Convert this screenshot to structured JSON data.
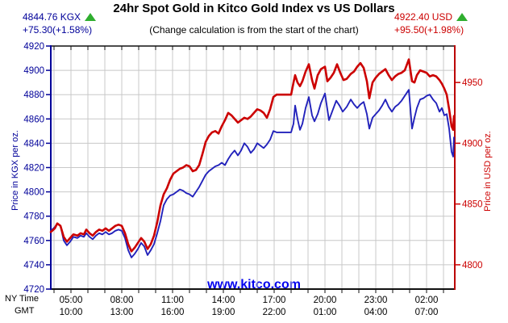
{
  "header": {
    "title": "24hr Spot Gold in Kitco Gold Index vs US Dollars",
    "subtitle": "(Change calculation is from the start of the chart)",
    "kgx_quote": {
      "price": "4844.76 KGX",
      "change": "+75.30(+1.58%)",
      "direction": "up",
      "color": "#000099"
    },
    "usd_quote": {
      "price": "4922.40 USD",
      "change": "+95.50(+1.98%)",
      "direction": "up",
      "color": "#cc0000"
    }
  },
  "watermark": "www.kitco.com",
  "colors": {
    "navy": "#000099",
    "red": "#cc0000",
    "grid": "#c8c8c8",
    "frame": "#111111",
    "arrow_green": "#2fae2f",
    "watermark_blue": "#0000ee"
  },
  "chart_data": {
    "type": "line",
    "title": "24hr Spot Gold in Kitco Gold Index vs US Dollars",
    "grid": true,
    "left_axis": {
      "label": "Price in KGX per oz.",
      "range": [
        4720,
        4920
      ],
      "ticks": [
        4920,
        4900,
        4880,
        4860,
        4840,
        4820,
        4800,
        4780,
        4760,
        4740,
        4720
      ],
      "color": "#000099"
    },
    "right_axis": {
      "label": "Price in USD per oz.",
      "range": [
        4780,
        4980
      ],
      "ticks": [
        4950,
        4900,
        4850,
        4800
      ],
      "color": "#cc0000"
    },
    "x_axis": {
      "row_labels": [
        "NY Time",
        "GMT"
      ],
      "ticks": [
        {
          "ny": "05:00",
          "gmt": "10:00"
        },
        {
          "ny": "08:00",
          "gmt": "13:00"
        },
        {
          "ny": "11:00",
          "gmt": "16:00"
        },
        {
          "ny": "14:00",
          "gmt": "19:00"
        },
        {
          "ny": "17:00",
          "gmt": "22:00"
        },
        {
          "ny": "20:00",
          "gmt": "01:00"
        },
        {
          "ny": "23:00",
          "gmt": "04:00"
        },
        {
          "ny": "02:00",
          "gmt": "07:00"
        }
      ]
    },
    "series": [
      {
        "name": "KGX",
        "axis": "left",
        "color": "#2222bb",
        "width": 1.9,
        "points": [
          [
            63,
            4768
          ],
          [
            68,
            4771
          ],
          [
            71,
            4774
          ],
          [
            75,
            4772
          ],
          [
            79,
            4760
          ],
          [
            83,
            4756
          ],
          [
            87,
            4759
          ],
          [
            91,
            4763
          ],
          [
            96,
            4762
          ],
          [
            100,
            4764
          ],
          [
            104,
            4763
          ],
          [
            107,
            4766
          ],
          [
            111,
            4763
          ],
          [
            115,
            4761
          ],
          [
            119,
            4764
          ],
          [
            123,
            4766
          ],
          [
            127,
            4765
          ],
          [
            131,
            4767
          ],
          [
            135,
            4765
          ],
          [
            139,
            4766
          ],
          [
            143,
            4768
          ],
          [
            147,
            4769
          ],
          [
            151,
            4768
          ],
          [
            155,
            4762
          ],
          [
            159,
            4752
          ],
          [
            163,
            4746
          ],
          [
            167,
            4749
          ],
          [
            171,
            4753
          ],
          [
            175,
            4758
          ],
          [
            179,
            4755
          ],
          [
            183,
            4748
          ],
          [
            187,
            4752
          ],
          [
            191,
            4757
          ],
          [
            195,
            4766
          ],
          [
            199,
            4776
          ],
          [
            203,
            4789
          ],
          [
            207,
            4794
          ],
          [
            211,
            4797
          ],
          [
            215,
            4798
          ],
          [
            219,
            4800
          ],
          [
            223,
            4802
          ],
          [
            227,
            4801
          ],
          [
            231,
            4799
          ],
          [
            235,
            4798
          ],
          [
            239,
            4796
          ],
          [
            243,
            4800
          ],
          [
            247,
            4804
          ],
          [
            251,
            4809
          ],
          [
            255,
            4814
          ],
          [
            259,
            4817
          ],
          [
            263,
            4819
          ],
          [
            267,
            4821
          ],
          [
            271,
            4822
          ],
          [
            275,
            4824
          ],
          [
            279,
            4822
          ],
          [
            283,
            4827
          ],
          [
            287,
            4831
          ],
          [
            291,
            4834
          ],
          [
            295,
            4830
          ],
          [
            299,
            4834
          ],
          [
            303,
            4840
          ],
          [
            307,
            4837
          ],
          [
            311,
            4832
          ],
          [
            315,
            4835
          ],
          [
            319,
            4840
          ],
          [
            323,
            4838
          ],
          [
            327,
            4836
          ],
          [
            331,
            4839
          ],
          [
            335,
            4843
          ],
          [
            339,
            4850
          ],
          [
            343,
            4849
          ],
          [
            355,
            4849
          ],
          [
            361,
            4849
          ],
          [
            364,
            4856
          ],
          [
            366,
            4871
          ],
          [
            369,
            4860
          ],
          [
            372,
            4851
          ],
          [
            375,
            4856
          ],
          [
            379,
            4869
          ],
          [
            383,
            4878
          ],
          [
            387,
            4863
          ],
          [
            390,
            4858
          ],
          [
            394,
            4864
          ],
          [
            398,
            4873
          ],
          [
            403,
            4881
          ],
          [
            408,
            4859
          ],
          [
            413,
            4868
          ],
          [
            417,
            4875
          ],
          [
            421,
            4871
          ],
          [
            425,
            4866
          ],
          [
            430,
            4870
          ],
          [
            435,
            4876
          ],
          [
            439,
            4872
          ],
          [
            443,
            4869
          ],
          [
            447,
            4872
          ],
          [
            451,
            4874
          ],
          [
            455,
            4864
          ],
          [
            458,
            4852
          ],
          [
            462,
            4861
          ],
          [
            466,
            4864
          ],
          [
            470,
            4867
          ],
          [
            474,
            4871
          ],
          [
            478,
            4876
          ],
          [
            482,
            4870
          ],
          [
            486,
            4866
          ],
          [
            490,
            4870
          ],
          [
            494,
            4872
          ],
          [
            498,
            4875
          ],
          [
            502,
            4879
          ],
          [
            507,
            4884
          ],
          [
            511,
            4852
          ],
          [
            514,
            4861
          ],
          [
            517,
            4869
          ],
          [
            521,
            4876
          ],
          [
            525,
            4877
          ],
          [
            529,
            4879
          ],
          [
            533,
            4880
          ],
          [
            537,
            4876
          ],
          [
            541,
            4873
          ],
          [
            545,
            4866
          ],
          [
            548,
            4869
          ],
          [
            551,
            4863
          ],
          [
            554,
            4864
          ],
          [
            557,
            4852
          ],
          [
            560,
            4833
          ],
          [
            562,
            4829
          ],
          [
            563,
            4844.8
          ]
        ]
      },
      {
        "name": "USD",
        "axis": "right",
        "color": "#cc0000",
        "width": 2.6,
        "points": [
          [
            63,
            4827
          ],
          [
            68,
            4830
          ],
          [
            71,
            4834
          ],
          [
            75,
            4832
          ],
          [
            79,
            4823
          ],
          [
            83,
            4819
          ],
          [
            87,
            4822
          ],
          [
            91,
            4825
          ],
          [
            96,
            4824
          ],
          [
            100,
            4826
          ],
          [
            104,
            4825
          ],
          [
            107,
            4829
          ],
          [
            111,
            4826
          ],
          [
            115,
            4824
          ],
          [
            119,
            4827
          ],
          [
            123,
            4829
          ],
          [
            127,
            4828
          ],
          [
            131,
            4830
          ],
          [
            135,
            4828
          ],
          [
            139,
            4830
          ],
          [
            143,
            4832
          ],
          [
            147,
            4833
          ],
          [
            151,
            4832
          ],
          [
            155,
            4826
          ],
          [
            159,
            4817
          ],
          [
            163,
            4811
          ],
          [
            167,
            4814
          ],
          [
            171,
            4818
          ],
          [
            175,
            4822
          ],
          [
            179,
            4819
          ],
          [
            183,
            4813
          ],
          [
            187,
            4817
          ],
          [
            191,
            4824
          ],
          [
            195,
            4835
          ],
          [
            199,
            4849
          ],
          [
            203,
            4858
          ],
          [
            207,
            4863
          ],
          [
            211,
            4870
          ],
          [
            215,
            4875
          ],
          [
            219,
            4877
          ],
          [
            223,
            4879
          ],
          [
            227,
            4880
          ],
          [
            231,
            4882
          ],
          [
            235,
            4881
          ],
          [
            239,
            4877
          ],
          [
            243,
            4878
          ],
          [
            247,
            4882
          ],
          [
            251,
            4891
          ],
          [
            255,
            4901
          ],
          [
            259,
            4906
          ],
          [
            263,
            4909
          ],
          [
            267,
            4910
          ],
          [
            271,
            4908
          ],
          [
            275,
            4914
          ],
          [
            279,
            4919
          ],
          [
            283,
            4925
          ],
          [
            287,
            4923
          ],
          [
            291,
            4920
          ],
          [
            295,
            4917
          ],
          [
            299,
            4919
          ],
          [
            303,
            4921
          ],
          [
            307,
            4920
          ],
          [
            311,
            4922
          ],
          [
            315,
            4925
          ],
          [
            319,
            4928
          ],
          [
            323,
            4927
          ],
          [
            327,
            4925
          ],
          [
            331,
            4921
          ],
          [
            335,
            4928
          ],
          [
            339,
            4938
          ],
          [
            343,
            4940
          ],
          [
            355,
            4940
          ],
          [
            361,
            4940
          ],
          [
            364,
            4950
          ],
          [
            366,
            4956
          ],
          [
            369,
            4950
          ],
          [
            372,
            4947
          ],
          [
            375,
            4951
          ],
          [
            379,
            4959
          ],
          [
            383,
            4965
          ],
          [
            387,
            4952
          ],
          [
            390,
            4945
          ],
          [
            394,
            4956
          ],
          [
            398,
            4961
          ],
          [
            403,
            4963
          ],
          [
            406,
            4951
          ],
          [
            410,
            4954
          ],
          [
            414,
            4958
          ],
          [
            418,
            4965
          ],
          [
            422,
            4958
          ],
          [
            426,
            4952
          ],
          [
            430,
            4953
          ],
          [
            435,
            4957
          ],
          [
            439,
            4959
          ],
          [
            443,
            4963
          ],
          [
            447,
            4966
          ],
          [
            451,
            4962
          ],
          [
            455,
            4951
          ],
          [
            458,
            4937
          ],
          [
            462,
            4950
          ],
          [
            466,
            4954
          ],
          [
            470,
            4957
          ],
          [
            474,
            4959
          ],
          [
            478,
            4961
          ],
          [
            482,
            4956
          ],
          [
            486,
            4952
          ],
          [
            490,
            4955
          ],
          [
            494,
            4957
          ],
          [
            498,
            4958
          ],
          [
            502,
            4960
          ],
          [
            507,
            4969
          ],
          [
            511,
            4951
          ],
          [
            514,
            4950
          ],
          [
            517,
            4956
          ],
          [
            521,
            4960
          ],
          [
            525,
            4959
          ],
          [
            529,
            4958
          ],
          [
            533,
            4955
          ],
          [
            537,
            4956
          ],
          [
            541,
            4955
          ],
          [
            545,
            4952
          ],
          [
            548,
            4949
          ],
          [
            551,
            4945
          ],
          [
            554,
            4940
          ],
          [
            557,
            4928
          ],
          [
            560,
            4914
          ],
          [
            562,
            4911
          ],
          [
            563,
            4922.4
          ]
        ]
      }
    ]
  }
}
